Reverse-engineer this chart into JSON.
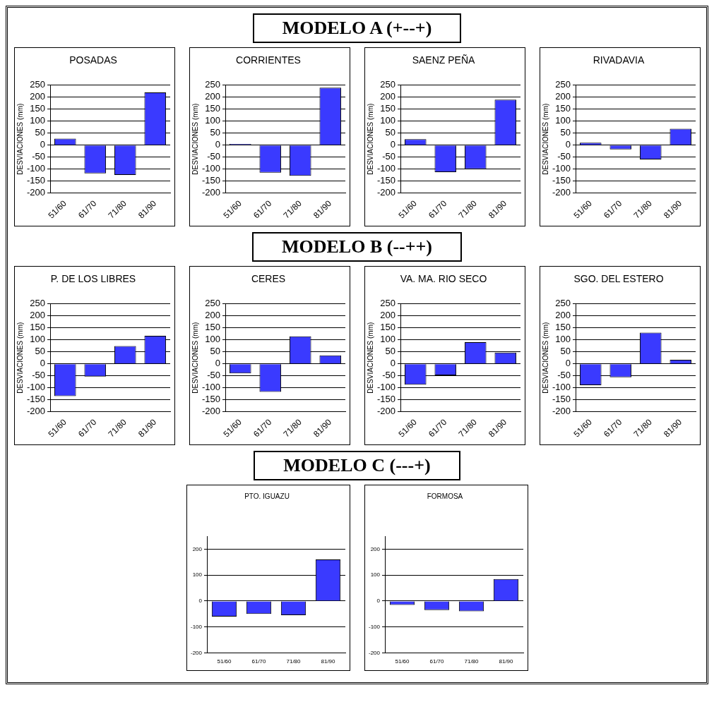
{
  "chart_data": [
    {
      "type": "bar",
      "title": "POSADAS",
      "ylabel": "DESVIACIONES (mm)",
      "annotations": [
        "MODELO A (+--+)"
      ],
      "categories": [
        "51/60",
        "61/70",
        "71/80",
        "81/90"
      ],
      "values": [
        27,
        -118,
        -125,
        220
      ],
      "color": "#3a3aff",
      "ylim": [
        -200,
        250
      ],
      "yticks": [
        -200,
        -150,
        -100,
        -50,
        0,
        50,
        100,
        150,
        200,
        250
      ],
      "grid": "y"
    },
    {
      "type": "bar",
      "title": "CORRIENTES",
      "ylabel": "DESVIACIONES (mm)",
      "categories": [
        "51/60",
        "61/70",
        "71/80",
        "81/90"
      ],
      "values": [
        5,
        -115,
        -128,
        240
      ],
      "color": "#3a3aff",
      "ylim": [
        -200,
        250
      ],
      "yticks": [
        -200,
        -150,
        -100,
        -50,
        0,
        50,
        100,
        150,
        200,
        250
      ],
      "grid": "y"
    },
    {
      "type": "bar",
      "title": "SAENZ PEÑA",
      "ylabel": "DESVIACIONES (mm)",
      "categories": [
        "51/60",
        "61/70",
        "71/80",
        "81/90"
      ],
      "values": [
        25,
        -113,
        -100,
        190
      ],
      "color": "#3a3aff",
      "ylim": [
        -200,
        250
      ],
      "yticks": [
        -200,
        -150,
        -100,
        -50,
        0,
        50,
        100,
        150,
        200,
        250
      ],
      "grid": "y"
    },
    {
      "type": "bar",
      "title": "RIVADAVIA",
      "ylabel": "DESVIACIONES (mm)",
      "categories": [
        "51/60",
        "61/70",
        "71/80",
        "81/90"
      ],
      "values": [
        10,
        -18,
        -60,
        68
      ],
      "color": "#3a3aff",
      "ylim": [
        -200,
        250
      ],
      "yticks": [
        -200,
        -150,
        -100,
        -50,
        0,
        50,
        100,
        150,
        200,
        250
      ],
      "grid": "y"
    },
    {
      "type": "bar",
      "title": "P. DE LOS LIBRES",
      "ylabel": "DESVIACIONES (mm)",
      "annotations": [
        "MODELO B (--++)"
      ],
      "categories": [
        "51/60",
        "61/70",
        "71/80",
        "81/90"
      ],
      "values": [
        -135,
        -53,
        74,
        117
      ],
      "color": "#3a3aff",
      "ylim": [
        -200,
        250
      ],
      "yticks": [
        -200,
        -150,
        -100,
        -50,
        0,
        50,
        100,
        150,
        200,
        250
      ],
      "grid": "y"
    },
    {
      "type": "bar",
      "title": "CERES",
      "ylabel": "DESVIACIONES (mm)",
      "categories": [
        "51/60",
        "61/70",
        "71/80",
        "81/90"
      ],
      "values": [
        -40,
        -117,
        115,
        35
      ],
      "color": "#3a3aff",
      "ylim": [
        -200,
        250
      ],
      "yticks": [
        -200,
        -150,
        -100,
        -50,
        0,
        50,
        100,
        150,
        200,
        250
      ],
      "grid": "y"
    },
    {
      "type": "bar",
      "title": "VA. MA. RIO SECO",
      "ylabel": "DESVIACIONES (mm)",
      "categories": [
        "51/60",
        "61/70",
        "71/80",
        "81/90"
      ],
      "values": [
        -87,
        -48,
        90,
        47
      ],
      "color": "#3a3aff",
      "ylim": [
        -200,
        250
      ],
      "yticks": [
        -200,
        -150,
        -100,
        -50,
        0,
        50,
        100,
        150,
        200,
        250
      ],
      "grid": "y"
    },
    {
      "type": "bar",
      "title": "SGO. DEL ESTERO",
      "ylabel": "DESVIACIONES (mm)",
      "categories": [
        "51/60",
        "61/70",
        "71/80",
        "81/90"
      ],
      "values": [
        -89,
        -56,
        130,
        17
      ],
      "color": "#3a3aff",
      "ylim": [
        -200,
        250
      ],
      "yticks": [
        -200,
        -150,
        -100,
        -50,
        0,
        50,
        100,
        150,
        200,
        250
      ],
      "grid": "y"
    },
    {
      "type": "bar",
      "title": "PTO. IGUAZU",
      "annotations": [
        "MODELO C (---+)"
      ],
      "categories": [
        "51/60",
        "61/70",
        "71/80",
        "81/90"
      ],
      "values": [
        -60,
        -50,
        -55,
        160
      ],
      "color": "#3a3aff",
      "ylim": [
        -200,
        250
      ],
      "yticks": [
        -200,
        -100,
        0,
        100,
        200
      ],
      "grid": "y"
    },
    {
      "type": "bar",
      "title": "FORMOSA",
      "categories": [
        "51/60",
        "61/70",
        "71/80",
        "81/90"
      ],
      "values": [
        -15,
        -35,
        -40,
        85
      ],
      "color": "#3a3aff",
      "ylim": [
        -200,
        250
      ],
      "yticks": [
        -200,
        -100,
        0,
        100,
        200
      ],
      "grid": "y"
    }
  ]
}
